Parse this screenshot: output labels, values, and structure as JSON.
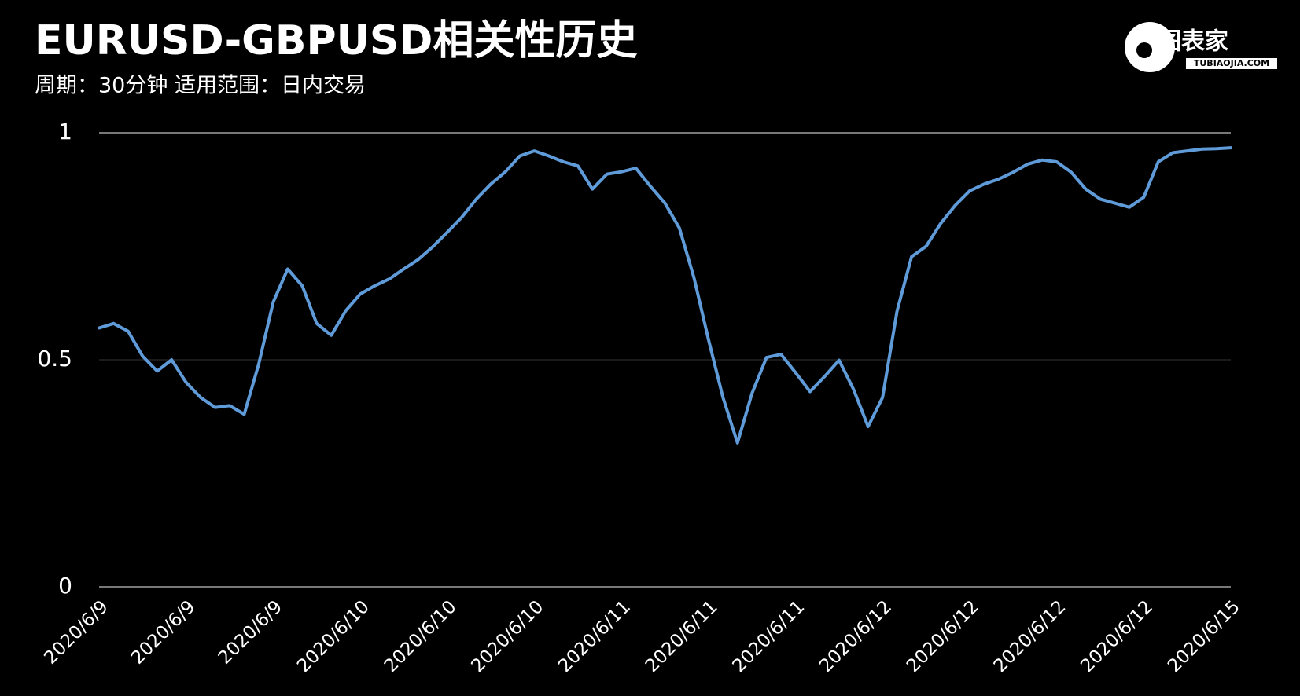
{
  "chart_data": {
    "type": "line",
    "title": "EURUSD-GBPUSD相关性历史",
    "subtitle": "周期：30分钟  适用范围：日内交易",
    "logo": {
      "name": "图表家",
      "url": "TUBIAOJIA.COM"
    },
    "categories": [
      "2020/6/9",
      null,
      null,
      null,
      null,
      null,
      "2020/6/9",
      null,
      null,
      null,
      null,
      null,
      "2020/6/9",
      null,
      null,
      null,
      null,
      null,
      "2020/6/10",
      null,
      null,
      null,
      null,
      null,
      "2020/6/10",
      null,
      null,
      null,
      null,
      null,
      "2020/6/10",
      null,
      null,
      null,
      null,
      null,
      "2020/6/11",
      null,
      null,
      null,
      null,
      null,
      "2020/6/11",
      null,
      null,
      null,
      null,
      null,
      "2020/6/11",
      null,
      null,
      null,
      null,
      null,
      "2020/6/12",
      null,
      null,
      null,
      null,
      null,
      "2020/6/12",
      null,
      null,
      null,
      null,
      null,
      "2020/6/12",
      null,
      null,
      null,
      null,
      null,
      "2020/6/12",
      null,
      null,
      null,
      null,
      null,
      "2020/6/15"
    ],
    "values": [
      0.57,
      0.58,
      0.563,
      0.508,
      0.475,
      0.5,
      0.45,
      0.417,
      0.395,
      0.399,
      0.38,
      0.49,
      0.627,
      0.7,
      0.663,
      0.58,
      0.554,
      0.608,
      0.645,
      0.663,
      0.678,
      0.7,
      0.721,
      0.749,
      0.781,
      0.814,
      0.854,
      0.887,
      0.914,
      0.949,
      0.96,
      0.949,
      0.936,
      0.927,
      0.876,
      0.909,
      0.914,
      0.922,
      0.882,
      0.845,
      0.79,
      0.681,
      0.545,
      0.417,
      0.317,
      0.426,
      0.505,
      0.512,
      0.472,
      0.43,
      0.463,
      0.499,
      0.435,
      0.353,
      0.417,
      0.608,
      0.727,
      0.75,
      0.8,
      0.84,
      0.872,
      0.887,
      0.898,
      0.913,
      0.931,
      0.94,
      0.936,
      0.913,
      0.876,
      0.854,
      0.845,
      0.836,
      0.858,
      0.936,
      0.956,
      0.96,
      0.964,
      0.965,
      0.967
    ],
    "color": "#5f9bd9",
    "ylim": [
      0,
      1
    ],
    "yticks": [
      0,
      0.5,
      1
    ],
    "grid": true
  }
}
